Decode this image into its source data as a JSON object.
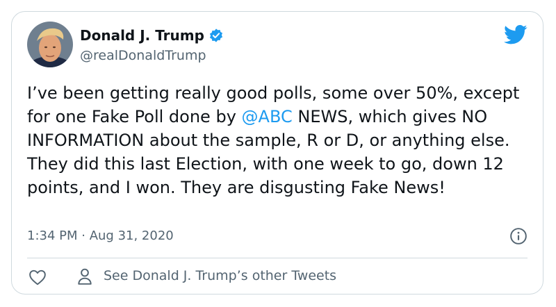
{
  "tweet": {
    "author_name": "Donald J. Trump",
    "handle": "@realDonaldTrump",
    "text_before_mention": "I’ve been getting really good polls, some over 50%, except for one Fake Poll done by ",
    "mention": "@ABC",
    "text_after_mention": " NEWS, which gives NO INFORMATION about the sample, R or D, or anything else. They did this last Election, with one week to go, down 12 points, and I won. They are disgusting Fake News!",
    "time": "1:34 PM",
    "separator": " · ",
    "date": "Aug 31, 2020"
  },
  "actions": {
    "other_tweets_label": "See Donald J. Trump’s other Tweets"
  },
  "colors": {
    "accent": "#1d9bf0",
    "muted": "#536471",
    "border": "#cfd9de"
  },
  "icons": {
    "verified": "verified-badge-icon",
    "brand": "twitter-bird-icon",
    "info": "info-icon",
    "like": "heart-icon",
    "profile": "person-icon"
  }
}
